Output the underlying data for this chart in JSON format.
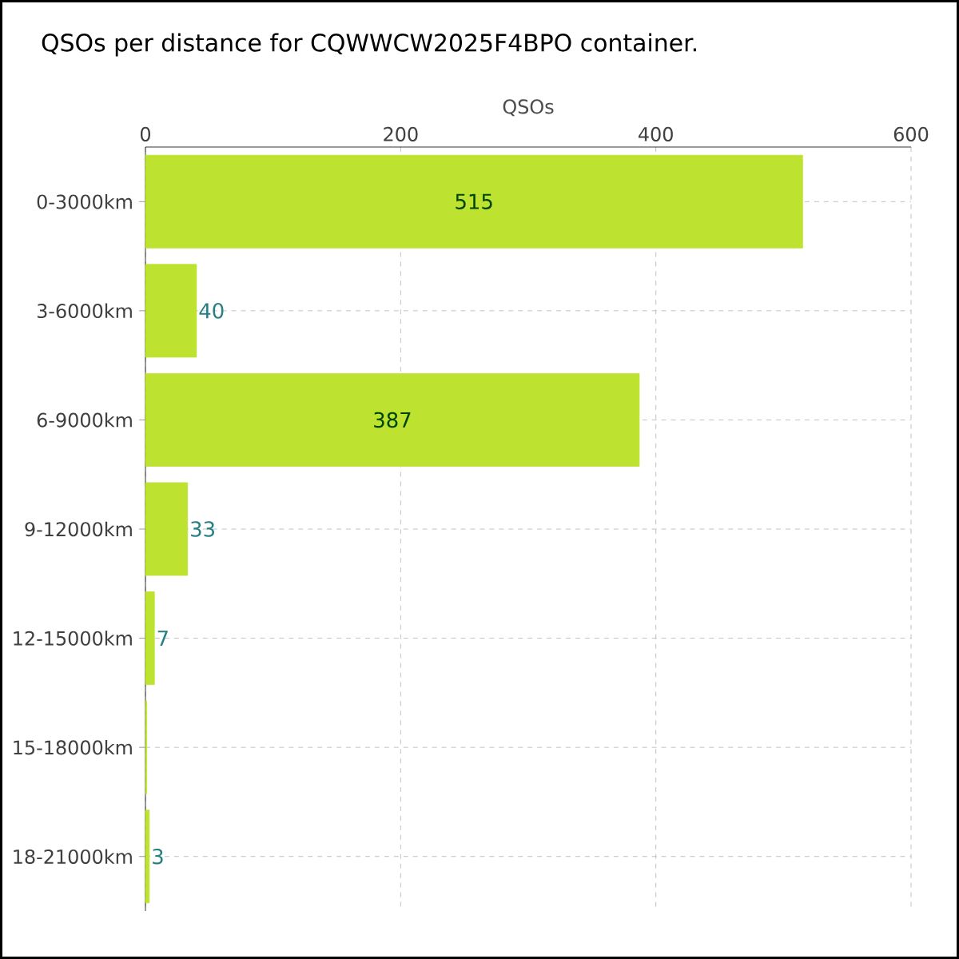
{
  "chart_data": {
    "type": "bar",
    "orientation": "horizontal",
    "title": "QSOs per distance for CQWWCW2025F4BPO container.",
    "xlabel": "QSOs",
    "categories": [
      "0-3000km",
      "3-6000km",
      "6-9000km",
      "9-12000km",
      "12-15000km",
      "15-18000km",
      "18-21000km"
    ],
    "values": [
      515,
      40,
      387,
      33,
      7,
      1,
      3
    ],
    "value_labels": [
      "515",
      "40",
      "387",
      "33",
      "7",
      null,
      "3"
    ],
    "color": "#bde22f",
    "xlim": [
      0,
      600
    ],
    "xticks": [
      0,
      200,
      400,
      600
    ],
    "grid": true
  }
}
